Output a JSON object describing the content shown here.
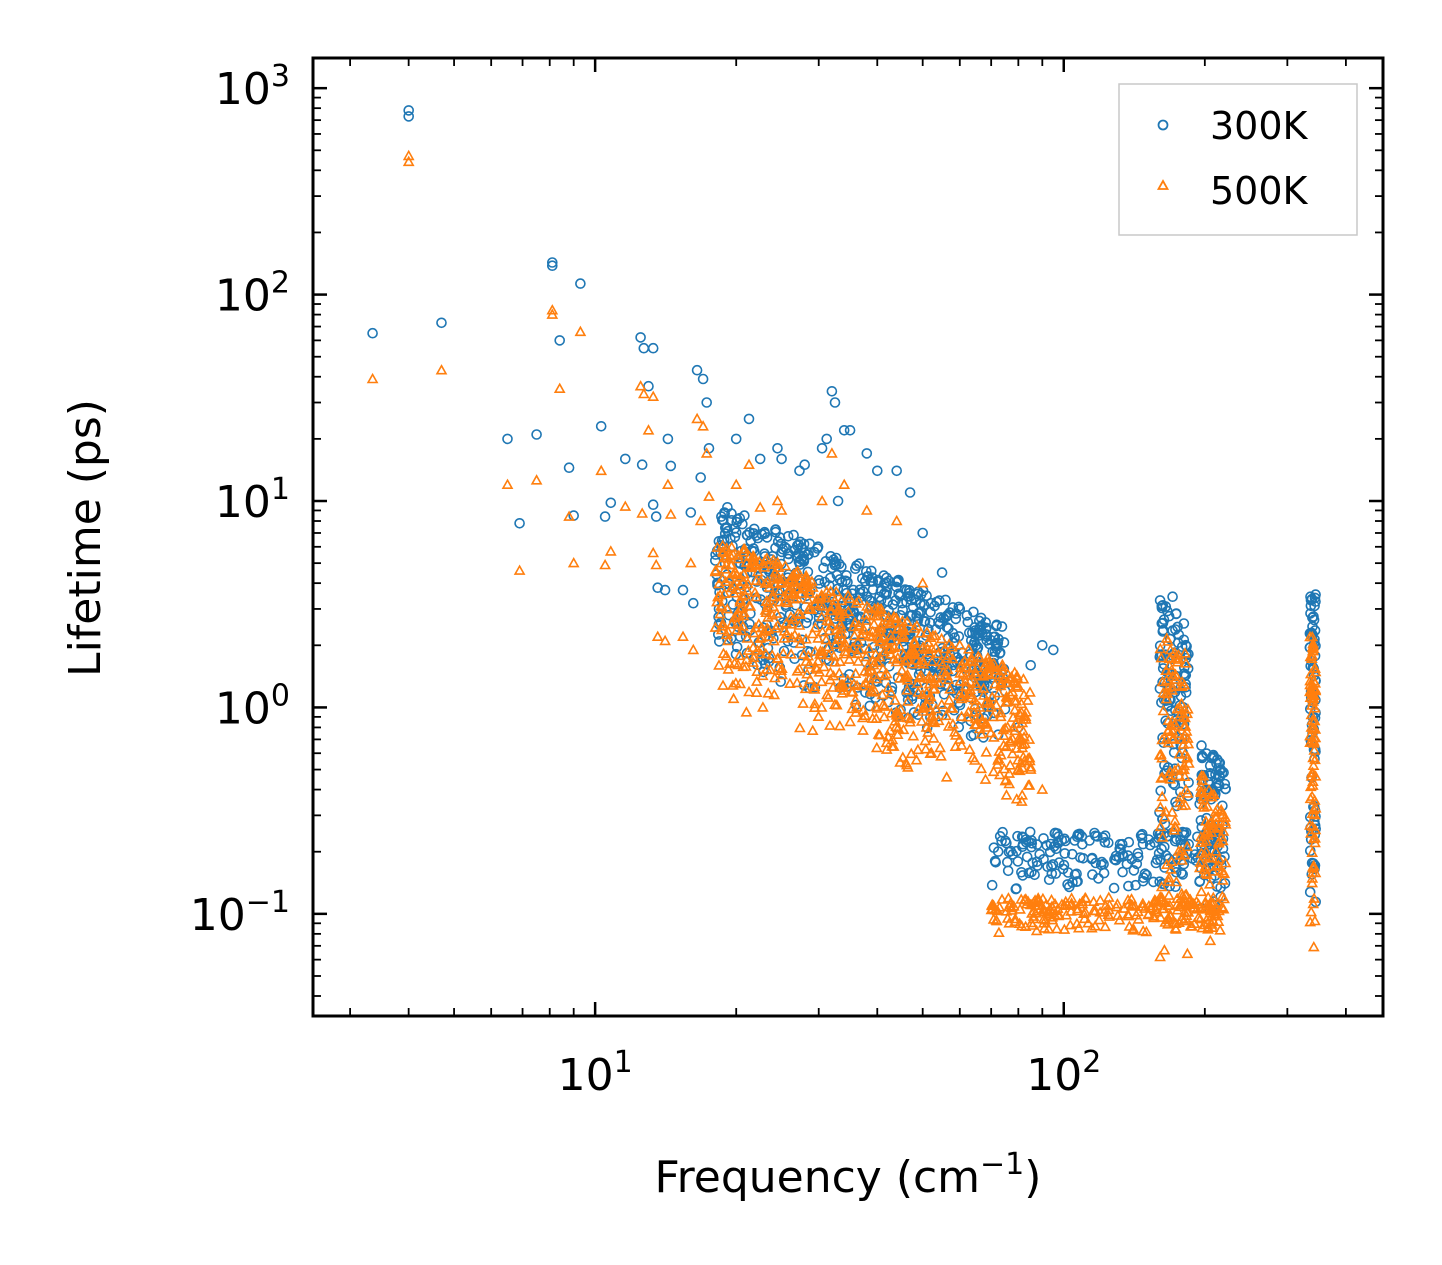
{
  "chart_data": {
    "type": "scatter",
    "x_scale": "log",
    "y_scale": "log",
    "xlabel": "Frequency (cm",
    "xlabel_superscript": "−1",
    "xlabel_suffix": ")",
    "ylabel": "Lifetime (ps)",
    "xlim": [
      2.5,
      480
    ],
    "ylim": [
      0.032,
      1400
    ],
    "x_ticks": [
      {
        "base": "10",
        "exp": "1",
        "value": 10
      },
      {
        "base": "10",
        "exp": "2",
        "value": 100
      }
    ],
    "y_ticks": [
      {
        "base": "10",
        "exp": "−1",
        "value": 0.1
      },
      {
        "base": "10",
        "exp": "0",
        "value": 1
      },
      {
        "base": "10",
        "exp": "1",
        "value": 10
      },
      {
        "base": "10",
        "exp": "2",
        "value": 100
      },
      {
        "base": "10",
        "exp": "3",
        "value": 1000
      }
    ],
    "legend_position": "top-right",
    "colors": {
      "300K": "#1f77b4",
      "500K": "#ff7f0e"
    },
    "series": [
      {
        "name": "300K",
        "marker": "circle",
        "points": [
          [
            3.35,
            65
          ],
          [
            4,
            780
          ],
          [
            4,
            730
          ],
          [
            4.7,
            73
          ],
          [
            6.5,
            20
          ],
          [
            6.9,
            7.8
          ],
          [
            7.5,
            21
          ],
          [
            8.1,
            143
          ],
          [
            8.1,
            138
          ],
          [
            8.4,
            60
          ],
          [
            8.8,
            14.5
          ],
          [
            9,
            8.5
          ],
          [
            9.3,
            113
          ],
          [
            10.3,
            23
          ],
          [
            10.5,
            8.4
          ],
          [
            10.8,
            9.8
          ],
          [
            11.6,
            16
          ],
          [
            12.5,
            62
          ],
          [
            12.6,
            15
          ],
          [
            12.7,
            55
          ],
          [
            13,
            36
          ],
          [
            13.3,
            55
          ],
          [
            13.3,
            9.6
          ],
          [
            13.5,
            8.4
          ],
          [
            13.6,
            3.8
          ],
          [
            14.1,
            3.7
          ],
          [
            14.3,
            20
          ],
          [
            14.5,
            14.8
          ],
          [
            15.4,
            3.7
          ],
          [
            16,
            8.8
          ],
          [
            16.2,
            3.2
          ],
          [
            16.5,
            43
          ],
          [
            16.8,
            13
          ],
          [
            17,
            39
          ],
          [
            17.3,
            30
          ],
          [
            17.5,
            18
          ],
          [
            18.6,
            8.4
          ],
          [
            19.2,
            3.6
          ],
          [
            20,
            20
          ],
          [
            20.4,
            2.2
          ],
          [
            21.3,
            25
          ],
          [
            22.5,
            16
          ],
          [
            22.8,
            1.7
          ],
          [
            24.5,
            18
          ],
          [
            25,
            16
          ],
          [
            27.3,
            14
          ],
          [
            28,
            15
          ],
          [
            29,
            4
          ],
          [
            30.5,
            18
          ],
          [
            31.2,
            20
          ],
          [
            32,
            34
          ],
          [
            32.5,
            30
          ],
          [
            33,
            10
          ],
          [
            34,
            22
          ],
          [
            35,
            22
          ],
          [
            38,
            17
          ],
          [
            40,
            14
          ],
          [
            44,
            14
          ],
          [
            47,
            11
          ],
          [
            50,
            7
          ],
          [
            55,
            4.5
          ],
          [
            60,
            3
          ],
          [
            65,
            2
          ],
          [
            70,
            1.6
          ],
          [
            75,
            1.2
          ],
          [
            80,
            0.8
          ],
          [
            85,
            1.6
          ],
          [
            90,
            2
          ],
          [
            95,
            1.9
          ]
        ],
        "clusters": [
          {
            "x_range": [
              18,
              75
            ],
            "y_upper": [
              10,
              2.5
            ],
            "y_lower": [
              1.6,
              0.6
            ],
            "count": 700
          },
          {
            "x_range": [
              70,
              220
            ],
            "y_upper": [
              0.25,
              0.25
            ],
            "y_lower": [
              0.13,
              0.13
            ],
            "count": 200
          },
          {
            "x_range": [
              160,
              185
            ],
            "y_upper": [
              4.5,
              2.5
            ],
            "y_lower": [
              0.1,
              0.1
            ],
            "count": 120
          },
          {
            "x_range": [
              195,
              222
            ],
            "y_upper": [
              0.7,
              0.5
            ],
            "y_lower": [
              0.1,
              0.1
            ],
            "count": 80
          },
          {
            "x_range": [
              335,
              345
            ],
            "y_upper": [
              3.6,
              3.6
            ],
            "y_lower": [
              0.1,
              0.1
            ],
            "count": 80
          }
        ]
      },
      {
        "name": "500K",
        "marker": "triangle",
        "points": [
          [
            3.35,
            39
          ],
          [
            4,
            470
          ],
          [
            4,
            440
          ],
          [
            4.7,
            43
          ],
          [
            6.5,
            12
          ],
          [
            6.9,
            4.6
          ],
          [
            7.5,
            12.6
          ],
          [
            8.1,
            84
          ],
          [
            8.1,
            80
          ],
          [
            8.4,
            35
          ],
          [
            8.8,
            8.4
          ],
          [
            9,
            5
          ],
          [
            9.3,
            66
          ],
          [
            10.3,
            14
          ],
          [
            10.5,
            4.9
          ],
          [
            10.8,
            5.7
          ],
          [
            11.6,
            9.4
          ],
          [
            12.5,
            36
          ],
          [
            12.6,
            8.7
          ],
          [
            12.7,
            33
          ],
          [
            13,
            22
          ],
          [
            13.3,
            32
          ],
          [
            13.3,
            5.6
          ],
          [
            13.5,
            4.9
          ],
          [
            13.6,
            2.2
          ],
          [
            14.1,
            2.1
          ],
          [
            14.3,
            12
          ],
          [
            14.5,
            8.6
          ],
          [
            15.4,
            2.2
          ],
          [
            16,
            5
          ],
          [
            16.2,
            1.9
          ],
          [
            16.5,
            25
          ],
          [
            16.8,
            8
          ],
          [
            17,
            23
          ],
          [
            17.3,
            17
          ],
          [
            17.5,
            10.5
          ],
          [
            18.6,
            5
          ],
          [
            19.2,
            2.1
          ],
          [
            20,
            12
          ],
          [
            20.4,
            1.3
          ],
          [
            21.3,
            15
          ],
          [
            22.5,
            9.3
          ],
          [
            22.8,
            1
          ],
          [
            24.5,
            10
          ],
          [
            25,
            9
          ],
          [
            30.5,
            10
          ],
          [
            32,
            17
          ],
          [
            34,
            12
          ],
          [
            38,
            9
          ],
          [
            44,
            8
          ],
          [
            50,
            4
          ],
          [
            60,
            2
          ],
          [
            70,
            1
          ],
          [
            80,
            0.5
          ],
          [
            85,
            0.5
          ],
          [
            90,
            0.4
          ]
        ],
        "clusters": [
          {
            "x_range": [
              18,
              85
            ],
            "y_upper": [
              7,
              1.4
            ],
            "y_lower": [
              1.0,
              0.32
            ],
            "count": 800
          },
          {
            "x_range": [
              70,
              220
            ],
            "y_upper": [
              0.12,
              0.12
            ],
            "y_lower": [
              0.08,
              0.08
            ],
            "count": 220
          },
          {
            "x_range": [
              160,
              185
            ],
            "y_upper": [
              2.4,
              1.8
            ],
            "y_lower": [
              0.055,
              0.055
            ],
            "count": 130
          },
          {
            "x_range": [
              195,
              222
            ],
            "y_upper": [
              0.5,
              0.3
            ],
            "y_lower": [
              0.07,
              0.07
            ],
            "count": 90
          },
          {
            "x_range": [
              335,
              345
            ],
            "y_upper": [
              2.2,
              2.2
            ],
            "y_lower": [
              0.06,
              0.06
            ],
            "count": 90
          }
        ]
      }
    ]
  }
}
